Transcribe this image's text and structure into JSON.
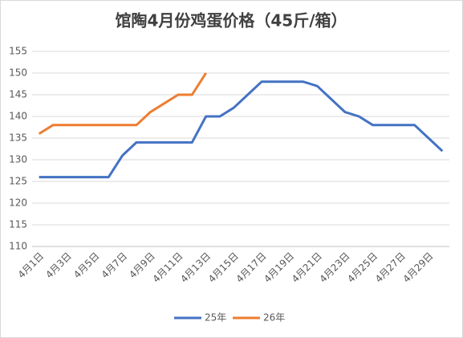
{
  "chart_data": {
    "type": "line",
    "title": "馆陶4月份鸡蛋价格（45斤/箱）",
    "categories": [
      "4月1日",
      null,
      "4月3日",
      null,
      "4月5日",
      null,
      "4月7日",
      null,
      "4月9日",
      null,
      "4月11日",
      null,
      "4月13日",
      null,
      "4月15日",
      null,
      "4月17日",
      null,
      "4月19日",
      null,
      "4月21日",
      null,
      "4月23日",
      null,
      "4月25日",
      null,
      "4月27日",
      null,
      "4月29日",
      null
    ],
    "series": [
      {
        "name": "25年",
        "color": "#4472c4",
        "values": [
          126,
          126,
          126,
          126,
          126,
          126,
          131,
          134,
          134,
          134,
          134,
          134,
          140,
          140,
          142,
          145,
          148,
          148,
          148,
          148,
          147,
          144,
          141,
          140,
          138,
          138,
          138,
          138,
          135,
          132
        ]
      },
      {
        "name": "26年",
        "color": "#ed7d31",
        "values": [
          136,
          138,
          138,
          138,
          138,
          138,
          138,
          138,
          141,
          143,
          145,
          145,
          150,
          null,
          null,
          null,
          null,
          null,
          null,
          null,
          null,
          null,
          null,
          null,
          null,
          null,
          null,
          null,
          null,
          null
        ]
      }
    ],
    "ylim": [
      110,
      155
    ],
    "yticks": [
      110,
      115,
      120,
      125,
      130,
      135,
      140,
      145,
      150,
      155
    ],
    "grid": true,
    "legend": "bottom"
  }
}
